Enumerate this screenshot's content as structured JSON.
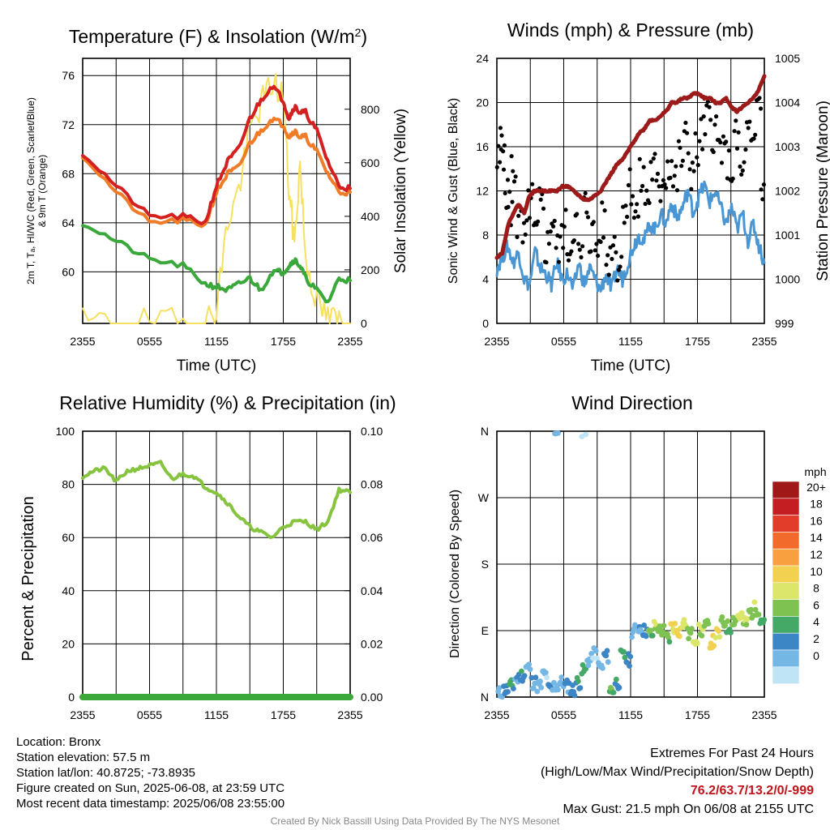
{
  "chart_data": [
    {
      "type": "line",
      "title": "Temperature (F) & Insolation (W/m",
      "title_sup": "2",
      "title_end": ")",
      "xlabel": "Time (UTC)",
      "ylabel_lines": [
        "2m T, Tₐ, HI/WC (Red, Green, Scarlet/Blue)",
        "& 9m T (Orange)"
      ],
      "ylabel_right": "Solar Insolation (Yellow)",
      "x_ticks": [
        "2355",
        "0555",
        "1155",
        "1755",
        "2355"
      ],
      "x": [
        0,
        3,
        6,
        9,
        11,
        12,
        13,
        14,
        15,
        16,
        17,
        18,
        18.5,
        19,
        19.5,
        20,
        21,
        22,
        23,
        24
      ],
      "ylim": [
        55.8,
        77.4
      ],
      "y_ticks": [
        60,
        64,
        68,
        72,
        76
      ],
      "y2lim": [
        0,
        990
      ],
      "y2_ticks": [
        0,
        200,
        400,
        600,
        800
      ],
      "grid": true,
      "series": [
        {
          "color": "#f5e060",
          "axis": "right",
          "values": [
            0,
            0,
            0,
            0,
            0,
            60,
            380,
            500,
            720,
            820,
            900,
            850,
            500,
            300,
            600,
            250,
            80,
            20,
            10,
            0
          ]
        },
        {
          "color": "#f07c28",
          "axis": "left",
          "values": [
            69.5,
            66.5,
            64.0,
            64.2,
            63.8,
            66.5,
            68.0,
            68.5,
            70.5,
            71.5,
            72.5,
            72.0,
            71.0,
            71.5,
            71.0,
            71.0,
            69.8,
            68.0,
            66.5,
            66.5
          ]
        },
        {
          "color": "#d42020",
          "axis": "left",
          "values": [
            69.7,
            67.0,
            64.5,
            64.5,
            64.0,
            67.0,
            69.0,
            70.0,
            72.5,
            74.0,
            75.2,
            74.0,
            72.5,
            73.5,
            73.0,
            73.0,
            71.5,
            69.0,
            67.0,
            66.8
          ]
        },
        {
          "color": "#3aa83a",
          "axis": "left",
          "values": [
            64.0,
            62.5,
            61.0,
            60.5,
            59.0,
            58.8,
            58.5,
            59.0,
            59.5,
            58.5,
            60.0,
            60.0,
            60.5,
            61.0,
            60.5,
            59.5,
            58.5,
            57.5,
            59.5,
            59.3
          ]
        }
      ]
    },
    {
      "type": "line",
      "title": "Winds (mph) & Pressure (mb)",
      "xlabel": "Time (UTC)",
      "ylabel": "Sonic Wind & Gust (Blue, Black)",
      "ylabel_right": "Station Pressure (Maroon)",
      "x_ticks": [
        "2355",
        "0555",
        "1155",
        "1755",
        "2355"
      ],
      "ylim": [
        0,
        24
      ],
      "y_ticks": [
        0,
        4,
        8,
        12,
        16,
        20,
        24
      ],
      "y2lim": [
        999,
        1005
      ],
      "y2_ticks": [
        999,
        1000,
        1001,
        1002,
        1003,
        1004,
        1005
      ],
      "grid": true,
      "gust_points": {
        "x": [
          0.2,
          0.5,
          0.8,
          1.2,
          1.5,
          2.0,
          2.5,
          3.0,
          3.5,
          4.0,
          4.5,
          5.0,
          5.5,
          6.0,
          6.5,
          7.0,
          7.5,
          8.0,
          8.5,
          9.0,
          9.5,
          10.0,
          10.5,
          11.0,
          11.5,
          12.0,
          12.5,
          13.0,
          13.5,
          14.0,
          14.5,
          15.0,
          15.5,
          16.0,
          16.5,
          17.0,
          17.5,
          18.0,
          18.5,
          19.0,
          19.5,
          20.0,
          20.5,
          21.0,
          21.5,
          22.0,
          22.5,
          23.0,
          23.5,
          23.9
        ],
        "values": [
          14.5,
          17.5,
          12.0,
          10.5,
          14.0,
          9.0,
          7.5,
          11.0,
          8.0,
          10.5,
          7.0,
          9.5,
          6.5,
          8.5,
          7.0,
          9.0,
          6.0,
          10.5,
          8.0,
          7.0,
          9.0,
          6.0,
          7.5,
          5.5,
          11.0,
          12.5,
          10.0,
          13.0,
          11.5,
          14.0,
          12.0,
          13.5,
          14.5,
          13.0,
          15.0,
          16.5,
          14.0,
          15.5,
          17.0,
          18.5,
          17.5,
          16.0,
          15.0,
          14.0,
          16.5,
          13.5,
          17.0,
          15.5,
          20.0,
          12.0
        ]
      },
      "series": [
        {
          "color": "#4a96d2",
          "axis": "left",
          "values": [
            5.0,
            6.0,
            7.0,
            5.5,
            6.5,
            4.0,
            3.5,
            6.5,
            5.0,
            4.5,
            3.5,
            5.5,
            4.0,
            4.5,
            3.0,
            5.5,
            3.5,
            5.0,
            4.0,
            3.0,
            4.5,
            3.0,
            5.0,
            4.0,
            5.5,
            7.0,
            8.0,
            7.5,
            9.0,
            8.5,
            10.0,
            9.0,
            11.0,
            9.5,
            10.5,
            12.0,
            10.0,
            11.5,
            12.5,
            11.0,
            12.0,
            10.5,
            9.0,
            10.5,
            8.5,
            10.0,
            7.5,
            9.0,
            7.0,
            5.5
          ]
        },
        {
          "color": "#9c1a1a",
          "axis": "right",
          "values": [
            1000.5,
            1000.6,
            1001.2,
            1001.5,
            1001.7,
            1001.5,
            1001.9,
            1002.0,
            1002.0,
            1002.0,
            1002.0,
            1002.0,
            1002.1,
            1002.1,
            1002.0,
            1001.9,
            1001.8,
            1001.8,
            1001.9,
            1002.0,
            1002.2,
            1002.4,
            1002.6,
            1002.7,
            1002.9,
            1003.1,
            1003.3,
            1003.4,
            1003.6,
            1003.6,
            1003.7,
            1003.8,
            1004.0,
            1004.0,
            1004.1,
            1004.1,
            1004.2,
            1004.2,
            1004.1,
            1004.1,
            1004.0,
            1004.0,
            1004.1,
            1003.9,
            1003.8,
            1003.9,
            1004.0,
            1004.1,
            1004.3,
            1004.6
          ]
        }
      ]
    },
    {
      "type": "line",
      "title": "Relative Humidity (%) & Precipitation (in)",
      "ylabel": "Percent & Precipitation",
      "x_ticks": [
        "2355",
        "0555",
        "1155",
        "1755",
        "2355"
      ],
      "x": [
        0,
        1,
        2,
        3,
        4,
        5,
        6,
        7,
        8,
        9,
        10,
        11,
        12,
        13,
        14,
        15,
        16,
        17,
        18,
        19,
        20,
        21,
        22,
        23,
        24
      ],
      "ylim": [
        0,
        100
      ],
      "y_ticks": [
        0,
        20,
        40,
        60,
        80,
        100
      ],
      "y2lim": [
        0,
        0.1
      ],
      "y2_ticks": [
        "0.00",
        "0.02",
        "0.04",
        "0.06",
        "0.08",
        "0.10"
      ],
      "grid": true,
      "series": [
        {
          "color": "#86c440",
          "axis": "left",
          "values": [
            83,
            85,
            86,
            81,
            85,
            86,
            87,
            88,
            82,
            84,
            83,
            79,
            77,
            73,
            68,
            64,
            62,
            60,
            64,
            66,
            66,
            63,
            66,
            78,
            77
          ]
        },
        {
          "color": "#3aa83a",
          "axis": "right",
          "values": [
            0,
            0,
            0,
            0,
            0,
            0,
            0,
            0,
            0,
            0,
            0,
            0,
            0,
            0,
            0,
            0,
            0,
            0,
            0,
            0,
            0,
            0,
            0,
            0,
            0
          ]
        }
      ]
    },
    {
      "type": "scatter",
      "title": "Wind Direction",
      "ylabel": "Direction (Colored By Speed)",
      "x_ticks": [
        "2355",
        "0555",
        "1155",
        "1755",
        "2355"
      ],
      "y_ticks": [
        "N",
        "E",
        "S",
        "W",
        "N"
      ],
      "ylim": [
        0,
        360
      ],
      "grid": true,
      "points": {
        "x": [
          0.3,
          0.8,
          1.3,
          1.8,
          2.3,
          2.8,
          3.3,
          3.8,
          4.3,
          4.8,
          5.3,
          5.8,
          6.3,
          6.8,
          7.3,
          7.8,
          8.3,
          8.8,
          9.3,
          9.8,
          10.3,
          10.8,
          11.3,
          11.8,
          12.3,
          12.8,
          13.3,
          13.8,
          14.3,
          14.8,
          15.3,
          15.8,
          16.3,
          16.8,
          17.3,
          17.8,
          18.3,
          18.8,
          19.3,
          19.8,
          20.3,
          20.8,
          21.3,
          21.8,
          22.3,
          22.8,
          23.3,
          23.8,
          5.3,
          7.8
        ],
        "values": [
          5,
          10,
          15,
          25,
          30,
          40,
          20,
          15,
          30,
          10,
          15,
          20,
          15,
          10,
          20,
          35,
          50,
          60,
          40,
          55,
          10,
          20,
          55,
          50,
          90,
          95,
          90,
          85,
          95,
          90,
          80,
          95,
          90,
          100,
          85,
          80,
          90,
          95,
          75,
          85,
          100,
          95,
          105,
          110,
          100,
          115,
          120,
          105,
          355,
          358
        ],
        "speeds": [
          3,
          5,
          6,
          4,
          6,
          3,
          4,
          3,
          2,
          4,
          3,
          3,
          4,
          5,
          6,
          7,
          3,
          2,
          3,
          4,
          8,
          6,
          7,
          5,
          3,
          4,
          5,
          8,
          10,
          9,
          8,
          12,
          13,
          11,
          9,
          12,
          10,
          9,
          13,
          12,
          9,
          8,
          9,
          11,
          10,
          9,
          10,
          7,
          2,
          2
        ]
      },
      "legend": {
        "title": "mph",
        "labels": [
          "20+",
          "18",
          "16",
          "14",
          "12",
          "10",
          "8",
          "6",
          "4",
          "2",
          "0"
        ],
        "colors": [
          "#a01818",
          "#c41e22",
          "#e23c2a",
          "#f26a2c",
          "#f8a040",
          "#f2d050",
          "#dce66a",
          "#7ec252",
          "#44a866",
          "#3c86c6",
          "#74b6e4",
          "#bfe4f6"
        ]
      }
    }
  ],
  "info": {
    "location": "Location: Bronx",
    "elevation": "Station elevation: 57.5 m",
    "latlon": "Station lat/lon: 40.8725; -73.8935",
    "created": "Figure created on Sun, 2025-06-08, at 23:59 UTC",
    "recent": "Most recent data timestamp: 2025/06/08 23:55:00"
  },
  "extremes": {
    "title": "Extremes For Past 24 Hours",
    "subtitle": "(High/Low/Max Wind/Precipitation/Snow Depth)",
    "values": "76.2/63.7/13.2/0/-999",
    "gust": "Max Gust: 21.5 mph On 06/08 at 2155 UTC"
  },
  "credit": "Created By Nick Bassill Using Data Provided By The NYS Mesonet"
}
